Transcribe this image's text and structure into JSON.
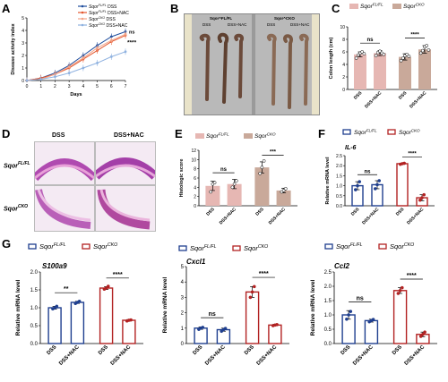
{
  "panels": {
    "A": "A",
    "B": "B",
    "C": "C",
    "D": "D",
    "E": "E",
    "F": "F",
    "G": "G"
  },
  "photoB": {
    "title_left": "Sqor^FL/FL",
    "title_right": "Sqor^CKO",
    "labels_left": [
      "DSS",
      "DSS+NAC"
    ],
    "labels_right": [
      "DSS",
      "DSS+NAC"
    ]
  },
  "photoD": {
    "col_dss": "DSS",
    "col_nac": "DSS+NAC",
    "row_fl": "Sqor",
    "row_fl_sup": "FL/FL",
    "row_cko": "Sqor",
    "row_cko_sup": "CKO"
  },
  "chart_data": [
    {
      "id": "A",
      "type": "line",
      "ylabel": "Disease activity index",
      "xlabel": "Days",
      "x": [
        0,
        1,
        2,
        3,
        4,
        5,
        6,
        7
      ],
      "ylim": [
        0,
        5
      ],
      "yticks": [
        0,
        1,
        2,
        3,
        4,
        5
      ],
      "series": [
        {
          "name": "Sqor^FL/FL DSS",
          "color": "#1f4e9e",
          "values": [
            0,
            0.2,
            0.6,
            1.2,
            2.0,
            2.8,
            3.5,
            3.9
          ]
        },
        {
          "name": "Sqor^FL/FL DSS+NAC",
          "color": "#e4572e",
          "values": [
            0,
            0.2,
            0.5,
            1.0,
            1.7,
            2.4,
            3.1,
            3.6
          ]
        },
        {
          "name": "Sqor^CKO DSS",
          "color": "#f2a489",
          "values": [
            0,
            0.1,
            0.5,
            1.1,
            1.8,
            2.6,
            3.2,
            3.7
          ]
        },
        {
          "name": "Sqor^CKO DSS+NAC",
          "color": "#8fb2e0",
          "values": [
            0,
            0.1,
            0.3,
            0.6,
            1.0,
            1.4,
            1.9,
            2.3
          ]
        }
      ],
      "annotations": [
        "ns",
        "****"
      ]
    },
    {
      "id": "C",
      "type": "bar",
      "ylabel": "Colon length (cm)",
      "ylim": [
        0,
        10
      ],
      "yticks": [
        0,
        2,
        4,
        6,
        8,
        10
      ],
      "categories": [
        "DSS",
        "DSS+NAC",
        "DSS",
        "DSS+NAC"
      ],
      "legend": [
        "Sqor^FL/FL",
        "Sqor^CKO"
      ],
      "colors": [
        "#e6b7b3",
        "#c9a99a"
      ],
      "values": [
        5.6,
        5.8,
        5.2,
        6.4
      ],
      "errors": [
        0.4,
        0.4,
        0.5,
        0.6
      ],
      "points": [
        [
          5.0,
          5.5,
          5.8,
          6.0,
          5.7
        ],
        [
          5.4,
          5.9,
          6.1,
          5.8,
          5.6
        ],
        [
          4.6,
          5.0,
          5.4,
          5.6,
          5.3
        ],
        [
          5.8,
          6.2,
          6.8,
          7.0,
          6.3
        ]
      ],
      "annotations": [
        {
          "text": "ns",
          "pair": [
            0,
            1
          ]
        },
        {
          "text": "****",
          "pair": [
            2,
            3
          ]
        }
      ]
    },
    {
      "id": "E",
      "type": "bar",
      "ylabel": "Histologic score",
      "ylim": [
        0,
        12
      ],
      "yticks": [
        0,
        2,
        4,
        6,
        8,
        10,
        12
      ],
      "categories": [
        "DSS",
        "DSS+NAC",
        "DSS",
        "DSS+NAC"
      ],
      "legend": [
        "Sqor^FL/FL",
        "Sqor^CKO"
      ],
      "colors": [
        "#e6b7b3",
        "#c9a99a"
      ],
      "values": [
        4.3,
        4.7,
        8.3,
        3.3
      ],
      "errors": [
        1.0,
        1.0,
        1.2,
        0.5
      ],
      "points": [
        [
          3.0,
          4.7,
          5.0
        ],
        [
          4.0,
          4.7,
          5.4
        ],
        [
          7.0,
          8.3,
          9.7
        ],
        [
          3.0,
          3.3,
          3.7
        ]
      ],
      "annotations": [
        {
          "text": "ns",
          "pair": [
            0,
            1
          ]
        },
        {
          "text": "***",
          "pair": [
            2,
            3
          ]
        }
      ]
    },
    {
      "id": "F",
      "type": "bar",
      "gene": "IL-6",
      "ylabel": "Relative mRNA level",
      "ylim": [
        0,
        2.5
      ],
      "yticks": [
        0.0,
        0.5,
        1.0,
        1.5,
        2.0,
        2.5
      ],
      "categories": [
        "DSS",
        "DSS+NAC",
        "DSS",
        "DSS+NAC"
      ],
      "legend": [
        "Sqor^FL/FL",
        "Sqor^CKO"
      ],
      "colors": [
        "#1f3f8f",
        "#b22222"
      ],
      "open": true,
      "values": [
        1.0,
        1.05,
        2.1,
        0.4
      ],
      "errors": [
        0.2,
        0.2,
        0.03,
        0.15
      ],
      "points": [
        [
          0.8,
          1.0,
          1.2
        ],
        [
          0.85,
          1.05,
          1.25
        ],
        [
          2.07,
          2.1,
          2.12
        ],
        [
          0.28,
          0.4,
          0.55
        ]
      ],
      "annotations": [
        {
          "text": "ns",
          "pair": [
            0,
            1
          ]
        },
        {
          "text": "****",
          "pair": [
            2,
            3
          ]
        }
      ]
    },
    {
      "id": "G1",
      "type": "bar",
      "gene": "S100a9",
      "ylabel": "Relative mRNA level",
      "ylim": [
        0,
        2.0
      ],
      "yticks": [
        0.0,
        0.5,
        1.0,
        1.5,
        2.0
      ],
      "categories": [
        "DSS",
        "DSS+NAC",
        "DSS",
        "DSS+NAC"
      ],
      "legend": [
        "Sqor^FL/FL",
        "Sqor^CKO"
      ],
      "colors": [
        "#1f3f8f",
        "#b22222"
      ],
      "open": true,
      "values": [
        1.0,
        1.15,
        1.55,
        0.65
      ],
      "errors": [
        0.04,
        0.03,
        0.04,
        0.02
      ],
      "points": [
        [
          0.97,
          1.0,
          1.04
        ],
        [
          1.12,
          1.15,
          1.18
        ],
        [
          1.52,
          1.55,
          1.6
        ],
        [
          0.63,
          0.65,
          0.66
        ]
      ],
      "annotations": [
        {
          "text": "**",
          "pair": [
            0,
            1
          ]
        },
        {
          "text": "****",
          "pair": [
            2,
            3
          ]
        }
      ]
    },
    {
      "id": "G2",
      "type": "bar",
      "gene": "Cxcl1",
      "ylabel": "Relative mRNA level",
      "ylim": [
        0,
        5
      ],
      "yticks": [
        0,
        1,
        2,
        3,
        4,
        5
      ],
      "categories": [
        "DSS",
        "DSS+NAC",
        "DSS",
        "DSS+NAC"
      ],
      "legend": [
        "Sqor^FL/FL",
        "Sqor^CKO"
      ],
      "colors": [
        "#1f3f8f",
        "#b22222"
      ],
      "open": true,
      "values": [
        1.0,
        0.9,
        3.35,
        1.2
      ],
      "errors": [
        0.08,
        0.1,
        0.35,
        0.05
      ],
      "points": [
        [
          0.92,
          1.0,
          1.05
        ],
        [
          0.8,
          0.9,
          0.98
        ],
        [
          3.0,
          3.35,
          3.7
        ],
        [
          1.16,
          1.2,
          1.23
        ]
      ],
      "annotations": [
        {
          "text": "ns",
          "pair": [
            0,
            1
          ]
        },
        {
          "text": "****",
          "pair": [
            2,
            3
          ]
        }
      ]
    },
    {
      "id": "G3",
      "type": "bar",
      "gene": "Ccl2",
      "ylabel": "Relative mRNA level",
      "ylim": [
        0,
        2.5
      ],
      "yticks": [
        0.0,
        0.5,
        1.0,
        1.5,
        2.0,
        2.5
      ],
      "categories": [
        "DSS",
        "DSS+NAC",
        "DSS",
        "DSS+NAC"
      ],
      "legend": [
        "Sqor^FL/FL",
        "Sqor^CKO"
      ],
      "colors": [
        "#1f3f8f",
        "#b22222"
      ],
      "open": true,
      "values": [
        1.0,
        0.8,
        1.85,
        0.32
      ],
      "errors": [
        0.15,
        0.05,
        0.1,
        0.08
      ],
      "points": [
        [
          0.85,
          1.0,
          1.12
        ],
        [
          0.76,
          0.8,
          0.84
        ],
        [
          1.75,
          1.85,
          1.95
        ],
        [
          0.25,
          0.32,
          0.4
        ]
      ],
      "annotations": [
        {
          "text": "ns",
          "pair": [
            0,
            1
          ]
        },
        {
          "text": "****",
          "pair": [
            2,
            3
          ]
        }
      ]
    }
  ]
}
